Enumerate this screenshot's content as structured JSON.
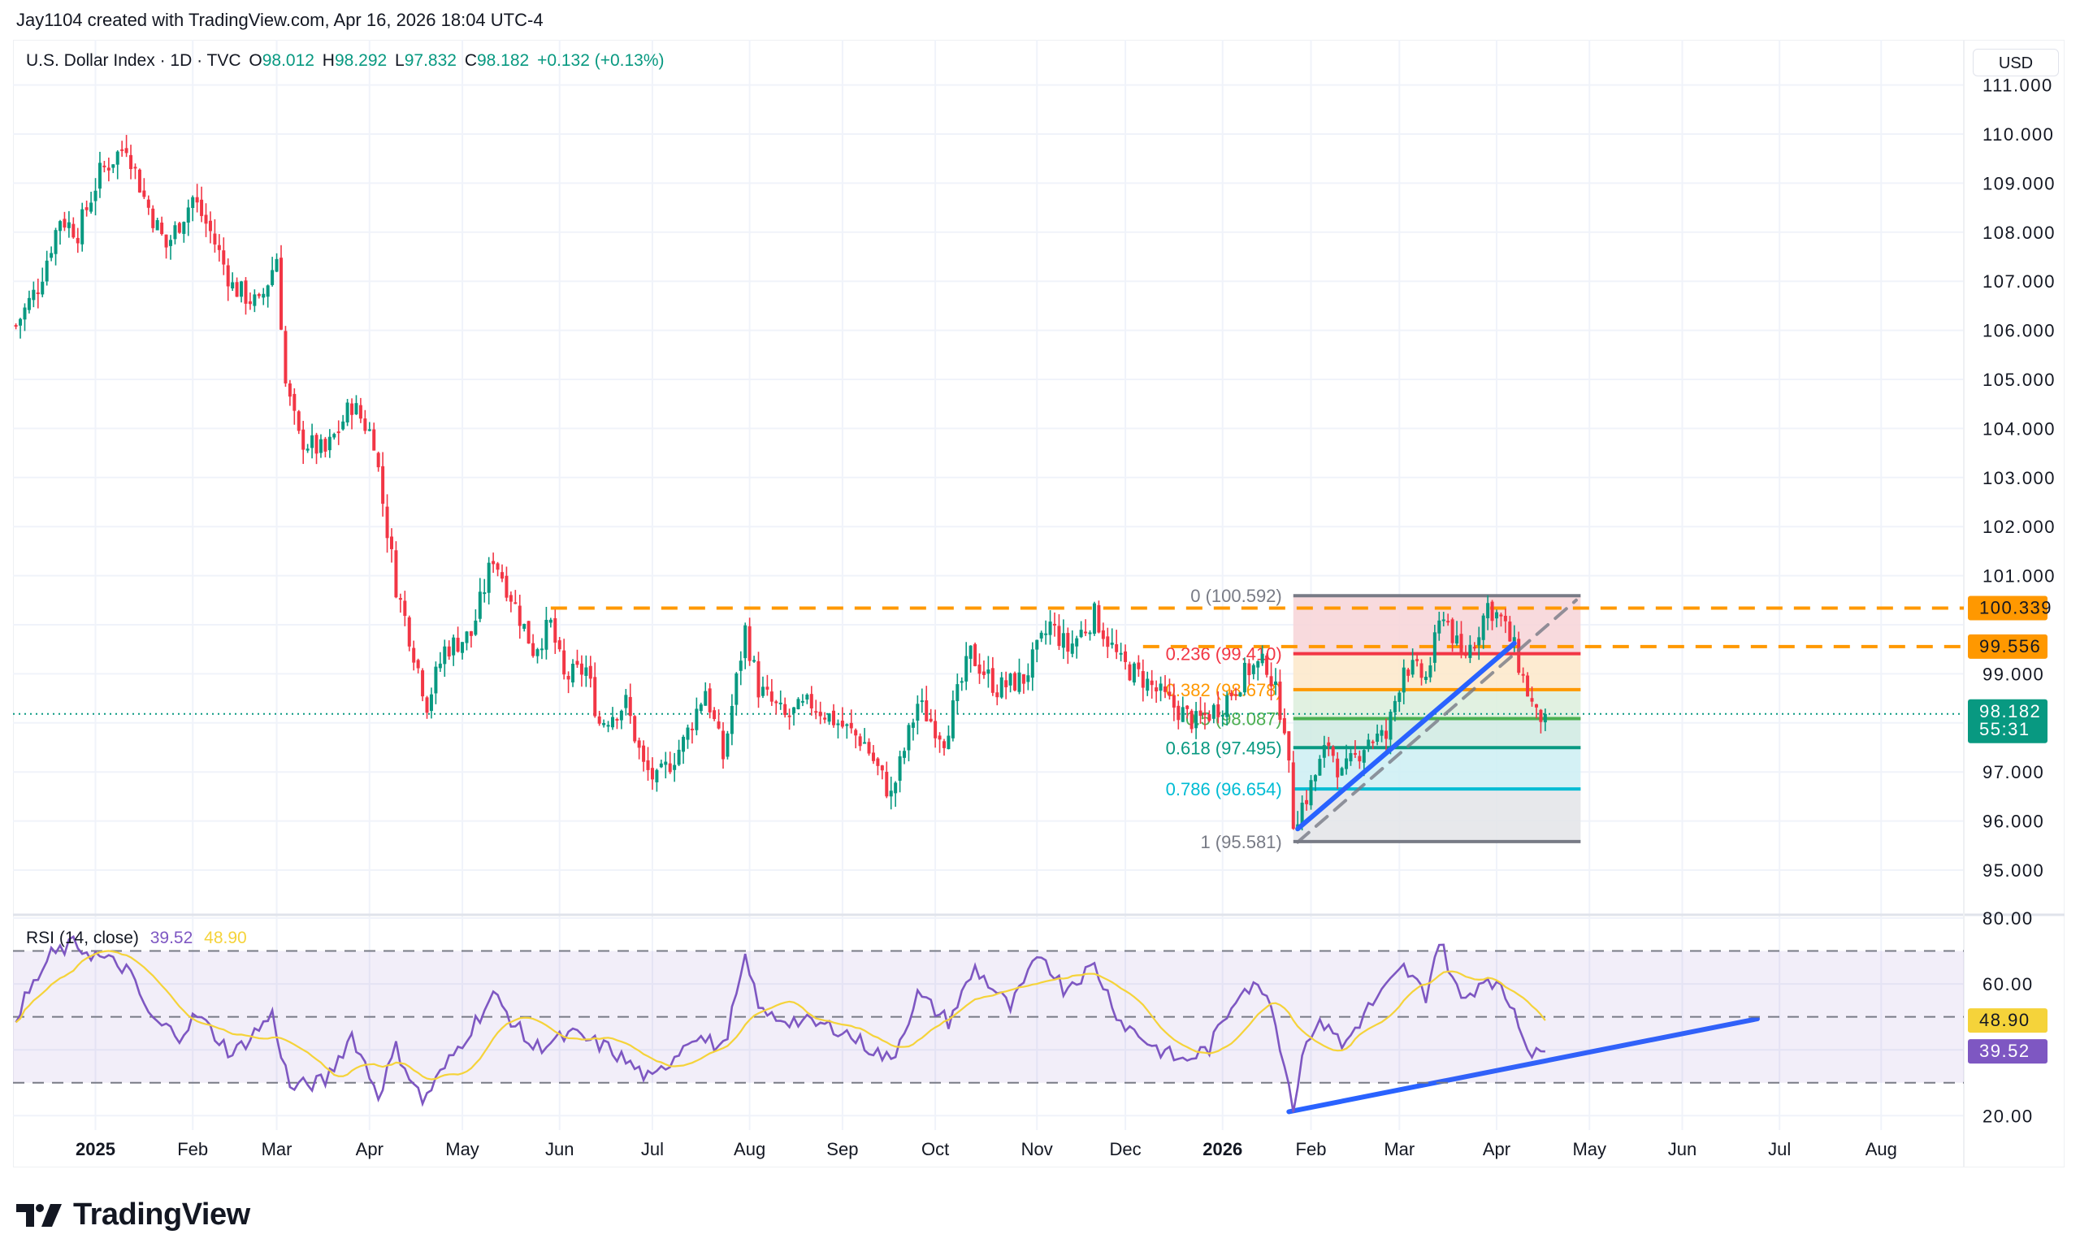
{
  "credit": "Jay1104 created with TradingView.com, Apr 16, 2026 18:04 UTC-4",
  "legend": {
    "symbol": "U.S. Dollar Index · 1D · TVC",
    "o_label": "O",
    "open": "98.012",
    "h_label": "H",
    "high": "98.292",
    "l_label": "L",
    "low": "97.832",
    "c_label": "C",
    "close": "98.182",
    "change": "+0.132 (+0.13%)"
  },
  "currency_button": "USD",
  "rsi_legend": {
    "name": "RSI (14, close)",
    "rsi": "39.52",
    "ma": "48.90"
  },
  "logo": "TradingView",
  "colors": {
    "up": "#089981",
    "down": "#f23645",
    "rsi": "#7e57c2",
    "rsi_ma": "#f5d33a",
    "orange": "#ff9800",
    "trend": "#2962ff"
  },
  "chart_data": {
    "type": "candlestick",
    "title": "U.S. Dollar Index · 1D · TVC",
    "x_unit": "bar index (trading days from chart start)",
    "price_close_keypoints": [
      [
        0,
        106.1
      ],
      [
        5,
        106.9
      ],
      [
        10,
        108.3
      ],
      [
        14,
        108.0
      ],
      [
        19,
        109.2
      ],
      [
        25,
        109.8
      ],
      [
        29,
        108.7
      ],
      [
        34,
        107.7
      ],
      [
        40,
        108.7
      ],
      [
        44,
        108.0
      ],
      [
        49,
        106.9
      ],
      [
        55,
        106.5
      ],
      [
        59,
        107.5
      ],
      [
        61,
        104.9
      ],
      [
        64,
        103.8
      ],
      [
        70,
        103.5
      ],
      [
        76,
        104.5
      ],
      [
        81,
        103.8
      ],
      [
        83,
        102.5
      ],
      [
        86,
        100.8
      ],
      [
        89,
        99.8
      ],
      [
        93,
        98.4
      ],
      [
        97,
        99.5
      ],
      [
        103,
        99.8
      ],
      [
        108,
        101.4
      ],
      [
        112,
        100.6
      ],
      [
        117,
        99.5
      ],
      [
        121,
        100.0
      ],
      [
        124,
        98.9
      ],
      [
        129,
        99.1
      ],
      [
        132,
        98.0
      ],
      [
        138,
        98.4
      ],
      [
        142,
        97.1
      ],
      [
        145,
        96.8
      ],
      [
        151,
        97.6
      ],
      [
        156,
        98.7
      ],
      [
        160,
        97.3
      ],
      [
        165,
        99.9
      ],
      [
        168,
        98.7
      ],
      [
        174,
        98.1
      ],
      [
        180,
        98.4
      ],
      [
        186,
        98.0
      ],
      [
        192,
        97.6
      ],
      [
        198,
        96.5
      ],
      [
        204,
        98.4
      ],
      [
        210,
        97.7
      ],
      [
        216,
        99.4
      ],
      [
        222,
        98.7
      ],
      [
        228,
        98.9
      ],
      [
        234,
        100.0
      ],
      [
        238,
        99.5
      ],
      [
        244,
        100.2
      ],
      [
        250,
        99.2
      ],
      [
        255,
        98.9
      ],
      [
        261,
        98.4
      ],
      [
        267,
        98.0
      ],
      [
        273,
        98.4
      ],
      [
        279,
        99.1
      ],
      [
        283,
        99.2
      ],
      [
        287,
        98.0
      ],
      [
        289,
        96.0
      ],
      [
        292,
        96.5
      ],
      [
        297,
        97.6
      ],
      [
        300,
        96.9
      ],
      [
        306,
        97.7
      ],
      [
        310,
        97.7
      ],
      [
        314,
        99.2
      ],
      [
        319,
        98.9
      ],
      [
        323,
        100.3
      ],
      [
        327,
        99.3
      ],
      [
        330,
        99.7
      ],
      [
        333,
        100.4
      ],
      [
        336,
        100.1
      ],
      [
        339,
        99.5
      ],
      [
        341,
        98.9
      ],
      [
        344,
        98.1
      ],
      [
        346,
        98.182
      ]
    ],
    "rsi_keypoints": [
      [
        0,
        50.6
      ],
      [
        8,
        68.7
      ],
      [
        13,
        72
      ],
      [
        19,
        68
      ],
      [
        25,
        64.7
      ],
      [
        31,
        48.6
      ],
      [
        37,
        44.6
      ],
      [
        41,
        50.6
      ],
      [
        49,
        38.5
      ],
      [
        58,
        50.6
      ],
      [
        62,
        28.4
      ],
      [
        70,
        30.5
      ],
      [
        76,
        44.6
      ],
      [
        82,
        26.4
      ],
      [
        86,
        40.5
      ],
      [
        92,
        24.4
      ],
      [
        100,
        40.5
      ],
      [
        108,
        56.6
      ],
      [
        117,
        40.5
      ],
      [
        126,
        44.6
      ],
      [
        134,
        40.5
      ],
      [
        144,
        30.5
      ],
      [
        153,
        44.6
      ],
      [
        160,
        40.5
      ],
      [
        165,
        66.7
      ],
      [
        169,
        50.6
      ],
      [
        177,
        48.6
      ],
      [
        186,
        46.6
      ],
      [
        198,
        36.5
      ],
      [
        204,
        56.6
      ],
      [
        211,
        48.6
      ],
      [
        217,
        64.7
      ],
      [
        225,
        52.6
      ],
      [
        232,
        69.5
      ],
      [
        237,
        58.7
      ],
      [
        244,
        65.5
      ],
      [
        250,
        48.6
      ],
      [
        258,
        40.5
      ],
      [
        264,
        36.5
      ],
      [
        270,
        40.5
      ],
      [
        277,
        58.7
      ],
      [
        283,
        58.7
      ],
      [
        287,
        36.5
      ],
      [
        289,
        22.4
      ],
      [
        292,
        44.6
      ],
      [
        297,
        48.6
      ],
      [
        300,
        40.5
      ],
      [
        306,
        52.6
      ],
      [
        314,
        64.7
      ],
      [
        319,
        56.6
      ],
      [
        322,
        73.6
      ],
      [
        327,
        54.6
      ],
      [
        333,
        62.7
      ],
      [
        339,
        52.6
      ],
      [
        343,
        37.7
      ],
      [
        346,
        39.52
      ]
    ],
    "price_axis": {
      "ylim": [
        94.1,
        111.6
      ],
      "ticks": [
        "111.000",
        "110.000",
        "109.000",
        "108.000",
        "107.000",
        "106.000",
        "105.000",
        "104.000",
        "103.000",
        "102.000",
        "101.000",
        "99.000",
        "97.000",
        "96.000",
        "95.000"
      ]
    },
    "rsi_axis": {
      "ylim": [
        15,
        80
      ],
      "ticks": [
        "80.00",
        "60.00",
        "20.00"
      ],
      "bands": [
        70,
        50,
        30
      ]
    },
    "time_ticks": [
      {
        "bar": 18,
        "label": "2025",
        "bold": true
      },
      {
        "bar": 40,
        "label": "Feb"
      },
      {
        "bar": 59,
        "label": "Mar"
      },
      {
        "bar": 80,
        "label": "Apr"
      },
      {
        "bar": 101,
        "label": "May"
      },
      {
        "bar": 123,
        "label": "Jun"
      },
      {
        "bar": 144,
        "label": "Jul"
      },
      {
        "bar": 166,
        "label": "Aug"
      },
      {
        "bar": 187,
        "label": "Sep"
      },
      {
        "bar": 208,
        "label": "Oct"
      },
      {
        "bar": 231,
        "label": "Nov"
      },
      {
        "bar": 251,
        "label": "Dec"
      },
      {
        "bar": 273,
        "label": "2026",
        "bold": true
      },
      {
        "bar": 293,
        "label": "Feb"
      },
      {
        "bar": 313,
        "label": "Mar"
      },
      {
        "bar": 335,
        "label": "Apr"
      },
      {
        "bar": 356,
        "label": "May"
      },
      {
        "bar": 377,
        "label": "Jun"
      },
      {
        "bar": 399,
        "label": "Jul"
      },
      {
        "bar": 422,
        "label": "Aug"
      }
    ],
    "fibonacci": {
      "start_bar": 289,
      "end_bar": 354,
      "levels": [
        {
          "ratio": "0",
          "price": 100.592,
          "label": "0 (100.592)",
          "color": "#787b86",
          "fill": "#f7d4d7"
        },
        {
          "ratio": "0.236",
          "price": 99.41,
          "label": "0.236 (99.410)",
          "color": "#f23645",
          "fill": "#fde7c9"
        },
        {
          "ratio": "0.382",
          "price": 98.678,
          "label": "0.382 (98.678)",
          "color": "#ff9800",
          "fill": "#dcefdc"
        },
        {
          "ratio": "0.5",
          "price": 98.087,
          "label": "0.5 (98.087)",
          "color": "#4caf50",
          "fill": "#cfeae2"
        },
        {
          "ratio": "0.618",
          "price": 97.495,
          "label": "0.618 (97.495)",
          "color": "#089981",
          "fill": "#cdeff3"
        },
        {
          "ratio": "0.786",
          "price": 96.654,
          "label": "0.786 (96.654)",
          "color": "#00bcd4",
          "fill": "#e3e4e7"
        },
        {
          "ratio": "1",
          "price": 95.581,
          "label": "1 (95.581)",
          "color": "#787b86",
          "fill": null
        }
      ]
    },
    "horizontal_levels": [
      {
        "price": 100.339,
        "label": "100.339",
        "start_bar": 121
      },
      {
        "price": 99.556,
        "label": "99.556",
        "start_bar": 255
      }
    ],
    "trendlines": [
      {
        "name": "price-uptrend",
        "from": [
          290,
          95.84
        ],
        "to": [
          339,
          99.62
        ],
        "color": "#2962ff",
        "style": "solid"
      },
      {
        "name": "price-channel",
        "from": [
          290,
          95.57
        ],
        "to": [
          353,
          100.5
        ],
        "color": "#787b86",
        "style": "dashed"
      },
      {
        "name": "rsi-uptrend",
        "from": [
          288,
          21.2
        ],
        "to": [
          394,
          49.4
        ],
        "color": "#2962ff",
        "style": "solid",
        "pane": "rsi"
      }
    ],
    "last_price": {
      "price": "98.182",
      "countdown": "55:31"
    },
    "last_rsi": "39.52",
    "last_rsi_ma": "48.90"
  }
}
